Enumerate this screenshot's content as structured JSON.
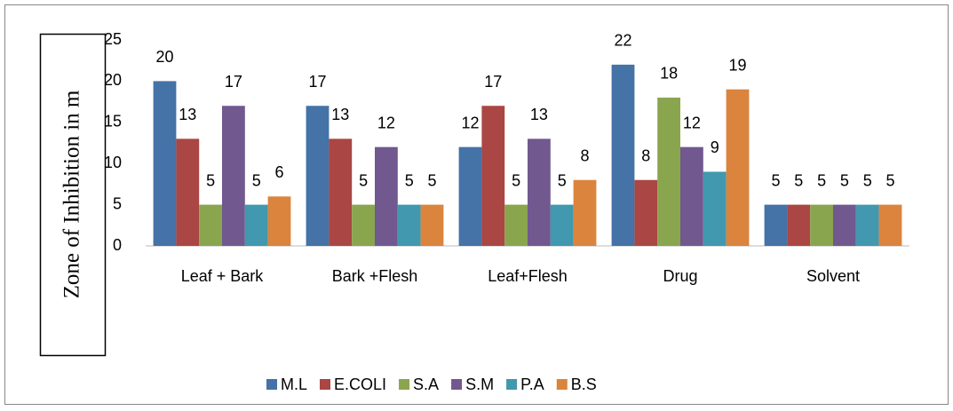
{
  "chart_data": {
    "type": "bar",
    "ylabel": "Zone of Inhibition in m",
    "categories": [
      "Leaf + Bark",
      "Bark +Flesh",
      "Leaf+Flesh",
      "Drug",
      "Solvent"
    ],
    "series": [
      {
        "name": "M.L",
        "color": "#4572a7",
        "values": [
          20,
          17,
          12,
          22,
          5
        ]
      },
      {
        "name": "E.COLI",
        "color": "#aa4643",
        "values": [
          13,
          13,
          17,
          8,
          5
        ]
      },
      {
        "name": "S.A",
        "color": "#89a54e",
        "values": [
          5,
          5,
          5,
          18,
          5
        ]
      },
      {
        "name": "S.M",
        "color": "#71588f",
        "values": [
          17,
          12,
          13,
          12,
          5
        ]
      },
      {
        "name": "P.A",
        "color": "#4198af",
        "values": [
          5,
          5,
          5,
          9,
          5
        ]
      },
      {
        "name": "B.S",
        "color": "#db843d",
        "values": [
          6,
          5,
          8,
          19,
          5
        ]
      }
    ],
    "ylim": [
      0,
      25
    ],
    "yticks": [
      0,
      5,
      10,
      15,
      20,
      25
    ],
    "legend": "bottom",
    "grid": false
  }
}
